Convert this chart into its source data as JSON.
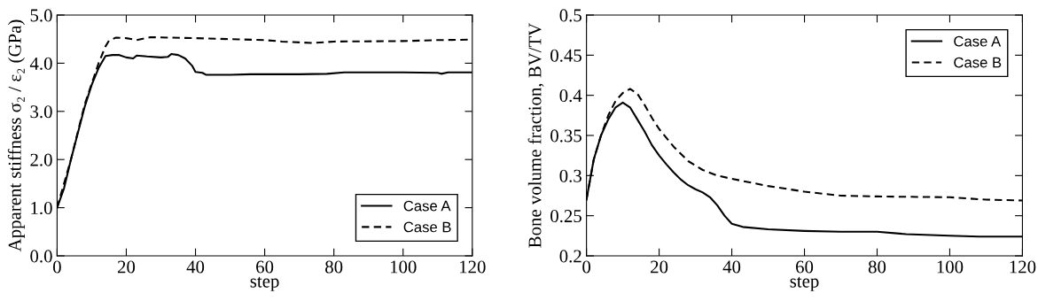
{
  "chart_data": [
    {
      "type": "line",
      "xlabel": "step",
      "ylabel": "Apparent stiffness σ₂ / ε₂ (GPa)",
      "xlim": [
        0,
        120
      ],
      "xticks": [
        0,
        20,
        40,
        60,
        80,
        100,
        120
      ],
      "ylim": [
        0,
        5
      ],
      "yticks": [
        {
          "value": 0,
          "label": "0.0"
        },
        {
          "value": 1,
          "label": "1.0"
        },
        {
          "value": 2,
          "label": "2.0"
        },
        {
          "value": 3,
          "label": "3.0"
        },
        {
          "value": 4,
          "label": "4.0"
        },
        {
          "value": 5,
          "label": "5.0"
        }
      ],
      "legend": "lower right",
      "grid": false,
      "series": [
        {
          "name": "Case A",
          "color": "#000000",
          "line_style": "solid",
          "x": [
            0,
            2,
            4,
            6,
            8,
            10,
            12,
            14,
            16,
            18,
            20,
            22,
            23,
            26,
            30,
            32,
            33,
            35,
            37,
            39,
            40,
            42,
            43,
            50,
            56,
            70,
            78,
            83,
            100,
            110,
            111,
            113,
            120
          ],
          "values": [
            1.0,
            1.4,
            2.0,
            2.55,
            3.1,
            3.55,
            3.9,
            4.15,
            4.17,
            4.17,
            4.12,
            4.1,
            4.16,
            4.14,
            4.12,
            4.13,
            4.19,
            4.17,
            4.1,
            3.95,
            3.82,
            3.8,
            3.76,
            3.76,
            3.77,
            3.77,
            3.78,
            3.81,
            3.81,
            3.8,
            3.78,
            3.81,
            3.81
          ]
        },
        {
          "name": "Case B",
          "color": "#000000",
          "line_style": "dashed",
          "x": [
            0,
            4,
            8,
            12,
            14,
            15,
            17,
            20,
            23,
            27,
            40,
            60,
            65,
            74,
            80,
            100,
            110,
            120
          ],
          "values": [
            1.0,
            2.0,
            3.15,
            4.0,
            4.35,
            4.47,
            4.53,
            4.52,
            4.48,
            4.54,
            4.52,
            4.48,
            4.45,
            4.42,
            4.45,
            4.46,
            4.48,
            4.49
          ]
        }
      ]
    },
    {
      "type": "line",
      "xlabel": "step",
      "ylabel": "Bone volume fraction, BV/TV",
      "xlim": [
        0,
        120
      ],
      "xticks": [
        0,
        20,
        40,
        60,
        80,
        100,
        120
      ],
      "ylim": [
        0.2,
        0.5
      ],
      "yticks": [
        0.2,
        0.25,
        0.3,
        0.35,
        0.4,
        0.45,
        0.5
      ],
      "legend": "upper right",
      "grid": false,
      "series": [
        {
          "name": "Case A",
          "color": "#000000",
          "line_style": "solid",
          "x": [
            0,
            2,
            4,
            6,
            8,
            10,
            12,
            14,
            16,
            18,
            20,
            22,
            24,
            26,
            28,
            30,
            32,
            34,
            36,
            38,
            40,
            43,
            50,
            60,
            70,
            80,
            88,
            100,
            108,
            120
          ],
          "values": [
            0.27,
            0.32,
            0.35,
            0.37,
            0.385,
            0.391,
            0.385,
            0.37,
            0.355,
            0.338,
            0.325,
            0.314,
            0.304,
            0.295,
            0.288,
            0.283,
            0.279,
            0.273,
            0.263,
            0.25,
            0.24,
            0.236,
            0.233,
            0.231,
            0.23,
            0.23,
            0.227,
            0.225,
            0.224,
            0.224
          ]
        },
        {
          "name": "Case B",
          "color": "#000000",
          "line_style": "dashed",
          "x": [
            0,
            2,
            4,
            6,
            8,
            10,
            12,
            14,
            16,
            18,
            20,
            24,
            28,
            32,
            36,
            40,
            50,
            60,
            70,
            80,
            100,
            110,
            120
          ],
          "values": [
            0.27,
            0.32,
            0.35,
            0.375,
            0.393,
            0.403,
            0.408,
            0.402,
            0.388,
            0.372,
            0.358,
            0.336,
            0.318,
            0.307,
            0.3,
            0.296,
            0.287,
            0.28,
            0.275,
            0.274,
            0.273,
            0.27,
            0.269
          ]
        }
      ]
    }
  ]
}
